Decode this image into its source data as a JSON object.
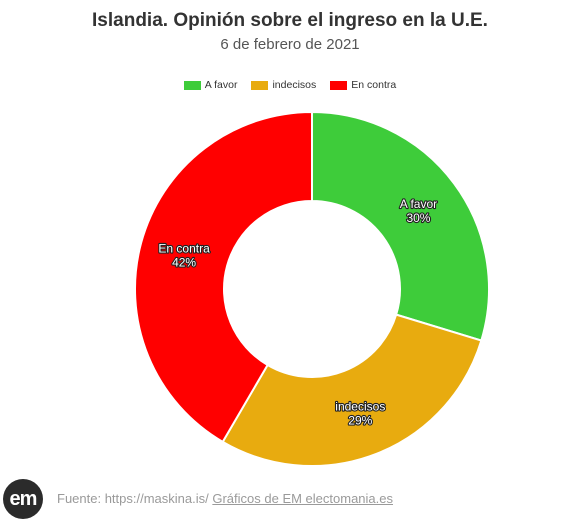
{
  "chart_data": {
    "type": "pie",
    "title": "Islandia. Opinión sobre el ingreso en la U.E.",
    "subtitle": "6 de febrero de 2021",
    "categories": [
      "A favor",
      "indecisos",
      "En contra"
    ],
    "values": [
      30,
      29,
      42
    ],
    "value_labels": [
      "30%",
      "29%",
      "42%"
    ],
    "colors": [
      "#3ecc3a",
      "#e8ab0f",
      "#ff0000"
    ],
    "donut": true,
    "legend_position": "top-center"
  },
  "footer": {
    "logo_text": "em",
    "source_text": "Fuente: https://maskina.is/",
    "credit_link": "Gráficos de EM electomania.es"
  }
}
